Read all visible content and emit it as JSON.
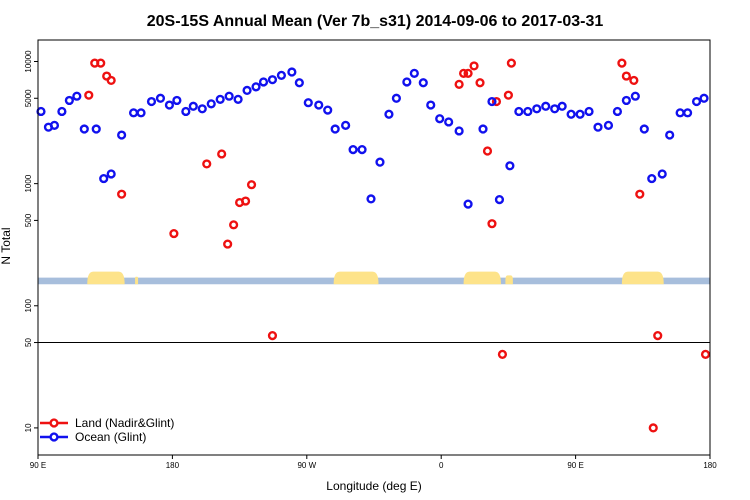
{
  "chart_data": {
    "type": "scatter",
    "title": "20S-15S Annual Mean (Ver 7b_s31)   2014-09-06 to 2017-03-31",
    "xlabel": "Longitude (deg E)",
    "ylabel": "N Total",
    "y_scale": "log",
    "xlim": [
      90,
      540
    ],
    "ylim": [
      6,
      15000
    ],
    "x_ticks": [
      {
        "value": 90,
        "label": "90 E"
      },
      {
        "value": 180,
        "label": "180"
      },
      {
        "value": 270,
        "label": "90 W"
      },
      {
        "value": 360,
        "label": "0"
      },
      {
        "value": 450,
        "label": "90 E"
      },
      {
        "value": 540,
        "label": "180"
      }
    ],
    "y_ticks": [
      {
        "value": 10,
        "label": "10"
      },
      {
        "value": 50,
        "label": "50"
      },
      {
        "value": 100,
        "label": "100"
      },
      {
        "value": 500,
        "label": "500"
      },
      {
        "value": 1000,
        "label": "1000"
      },
      {
        "value": 5000,
        "label": "5000"
      },
      {
        "value": 10000,
        "label": "10000"
      }
    ],
    "reference_line": 50,
    "legend_position": "bottom-left",
    "land_mask": {
      "y_band": [
        150,
        170
      ],
      "ocean_color": "#a7bedc",
      "land_color": "#fde38a",
      "land_segments": [
        [
          123,
          148
        ],
        [
          155,
          157
        ],
        [
          288,
          318
        ],
        [
          375,
          400
        ],
        [
          403,
          408
        ],
        [
          481,
          509
        ]
      ]
    },
    "series": [
      {
        "name": "Land (Nadir&Glint)",
        "color": "#ee1111",
        "x": [
          124,
          128,
          132,
          136,
          139,
          146,
          181,
          203,
          213,
          217,
          221,
          225,
          229,
          233,
          247,
          372,
          375,
          378,
          382,
          386,
          391,
          394,
          397,
          401,
          405,
          407,
          481,
          484,
          489,
          493,
          502,
          505,
          537
        ],
        "y": [
          5300,
          9700,
          9700,
          7600,
          7000,
          820,
          390,
          1450,
          1750,
          320,
          460,
          700,
          720,
          980,
          57,
          6500,
          8000,
          8000,
          9200,
          6700,
          1850,
          470,
          4700,
          40,
          5300,
          9700,
          9700,
          7600,
          7000,
          820,
          10,
          57,
          40
        ]
      },
      {
        "name": "Ocean (Glint)",
        "color": "#1111ee",
        "x": [
          92,
          97,
          101,
          106,
          111,
          116,
          121,
          129,
          134,
          139,
          146,
          154,
          159,
          166,
          172,
          178,
          183,
          189,
          194,
          200,
          206,
          212,
          218,
          224,
          230,
          236,
          241,
          247,
          253,
          260,
          265,
          271,
          278,
          284,
          289,
          296,
          301,
          307,
          313,
          319,
          325,
          330,
          337,
          342,
          348,
          353,
          359,
          365,
          372,
          378,
          388,
          394,
          399,
          406,
          412,
          418,
          424,
          430,
          436,
          441,
          447,
          453,
          459,
          465,
          472,
          478,
          484,
          490,
          496,
          501,
          508,
          513,
          520,
          525,
          531,
          536,
          541
        ],
        "y": [
          3900,
          2900,
          3000,
          3900,
          4800,
          5200,
          2800,
          2800,
          1100,
          1200,
          2500,
          3800,
          3800,
          4700,
          5000,
          4400,
          4800,
          3900,
          4300,
          4100,
          4500,
          4900,
          5200,
          4900,
          5800,
          6200,
          6800,
          7100,
          7700,
          8200,
          6700,
          4600,
          4400,
          4000,
          2800,
          3000,
          1900,
          1900,
          750,
          1500,
          3700,
          5000,
          6800,
          8000,
          6700,
          4400,
          3400,
          3200,
          2700,
          680,
          2800,
          4700,
          740,
          1400,
          3900,
          3900,
          4100,
          4300,
          4100,
          4300,
          3700,
          3700,
          3900,
          2900,
          3000,
          3900,
          4800,
          5200,
          2800,
          1100,
          1200,
          2500,
          3800,
          3800,
          4700,
          5000,
          4400
        ]
      }
    ]
  }
}
